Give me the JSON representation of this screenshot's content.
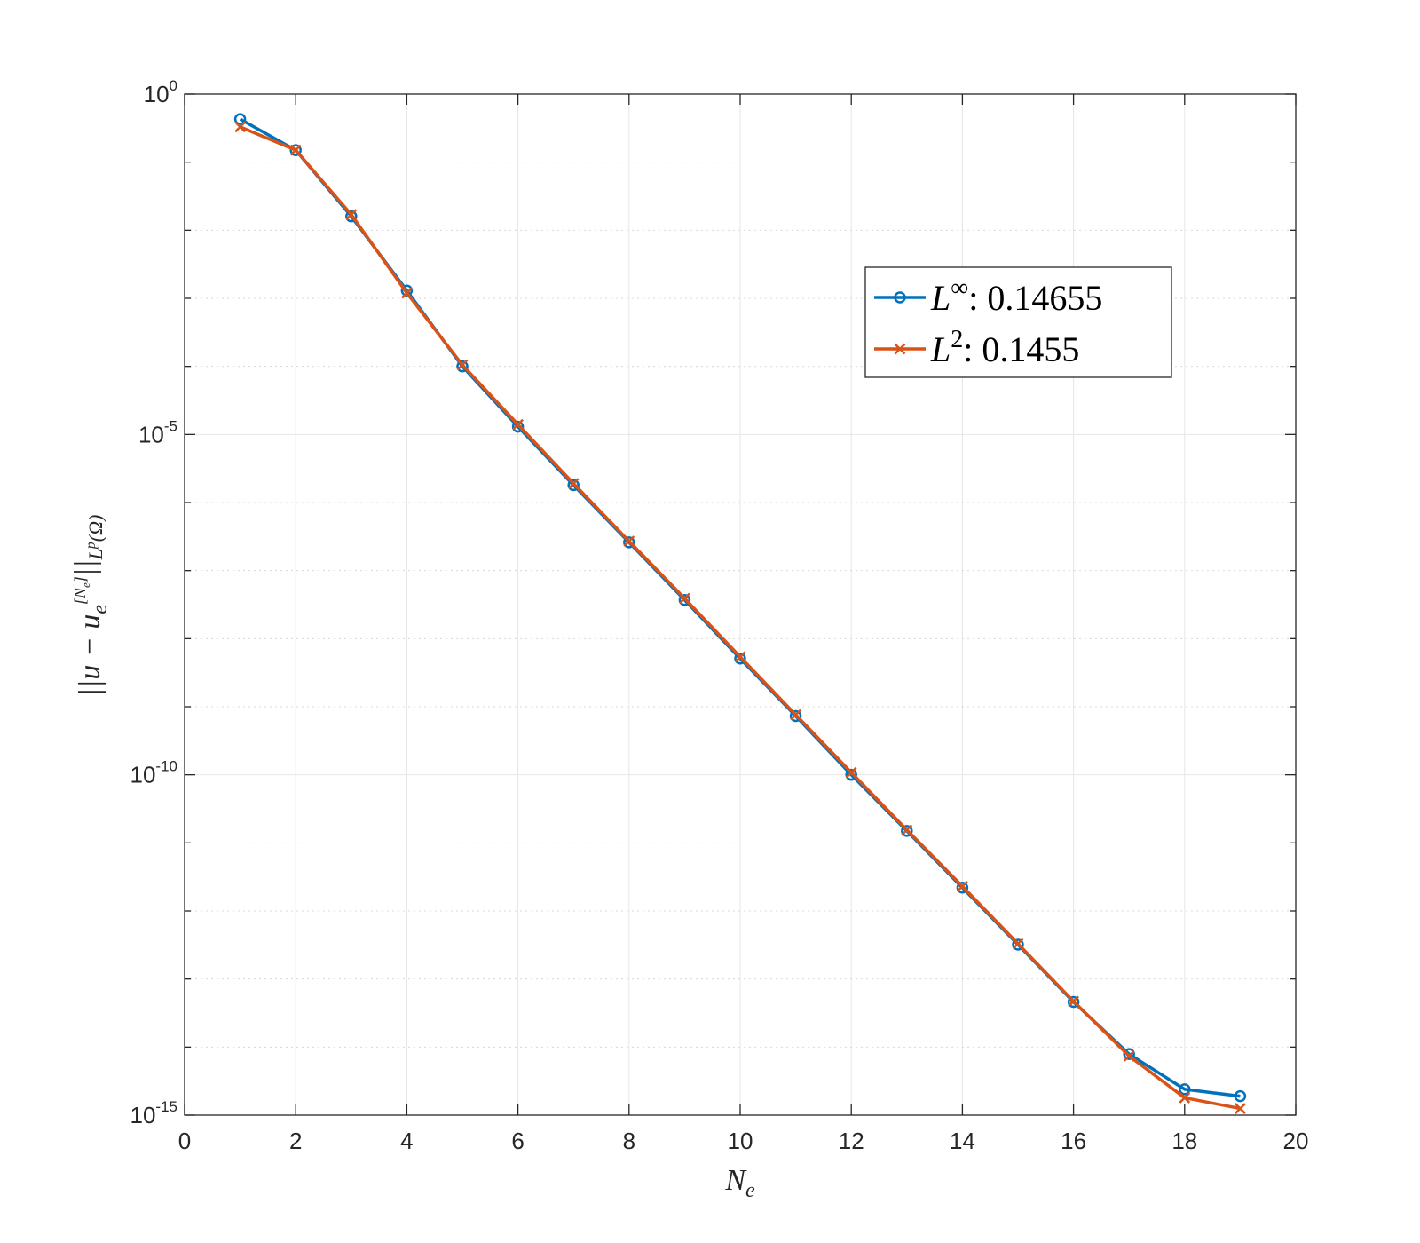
{
  "chart_data": {
    "type": "line",
    "xlabel": "N_e",
    "ylabel": "||u − u_e^[N_e]||_{L^p(Ω)}",
    "xlim": [
      0,
      20
    ],
    "ylim": [
      1e-15,
      1
    ],
    "yscale": "log",
    "grid": true,
    "legend_position": "upper-right",
    "x_ticks": [
      "0",
      "2",
      "4",
      "6",
      "8",
      "10",
      "12",
      "14",
      "16",
      "18",
      "20"
    ],
    "y_ticks": [
      {
        "base": "10",
        "exp": "0"
      },
      {
        "base": "10",
        "exp": "-5"
      },
      {
        "base": "10",
        "exp": "-10"
      },
      {
        "base": "10",
        "exp": "-15"
      }
    ],
    "x": [
      1,
      2,
      3,
      4,
      5,
      6,
      7,
      8,
      9,
      10,
      11,
      12,
      13,
      14,
      15,
      16,
      17,
      18,
      19
    ],
    "series": [
      {
        "name": "L^∞: 0.14655",
        "legend_base": "L",
        "legend_sup": "∞",
        "legend_value": ": 0.14655",
        "color": "#0072BD",
        "marker": "circle",
        "values": [
          0.43,
          0.15,
          0.016,
          0.0013,
          0.0001,
          1.3e-05,
          1.8e-06,
          2.6e-07,
          3.7e-08,
          5.1e-09,
          7.3e-10,
          1e-10,
          1.5e-11,
          2.2e-12,
          3.2e-13,
          4.6e-14,
          7.9e-15,
          2.4e-15,
          1.9e-15
        ]
      },
      {
        "name": "L^2: 0.1455",
        "legend_base": "L",
        "legend_sup": "2",
        "legend_value": ": 0.1455",
        "color": "#D95319",
        "marker": "x",
        "values": [
          0.33,
          0.15,
          0.017,
          0.0012,
          0.000105,
          1.4e-05,
          1.9e-06,
          2.7e-07,
          3.9e-08,
          5.4e-09,
          7.6e-10,
          1.08e-10,
          1.55e-11,
          2.3e-12,
          3.3e-13,
          4.7e-14,
          7.4e-15,
          1.8e-15,
          1.25e-15
        ]
      }
    ]
  }
}
